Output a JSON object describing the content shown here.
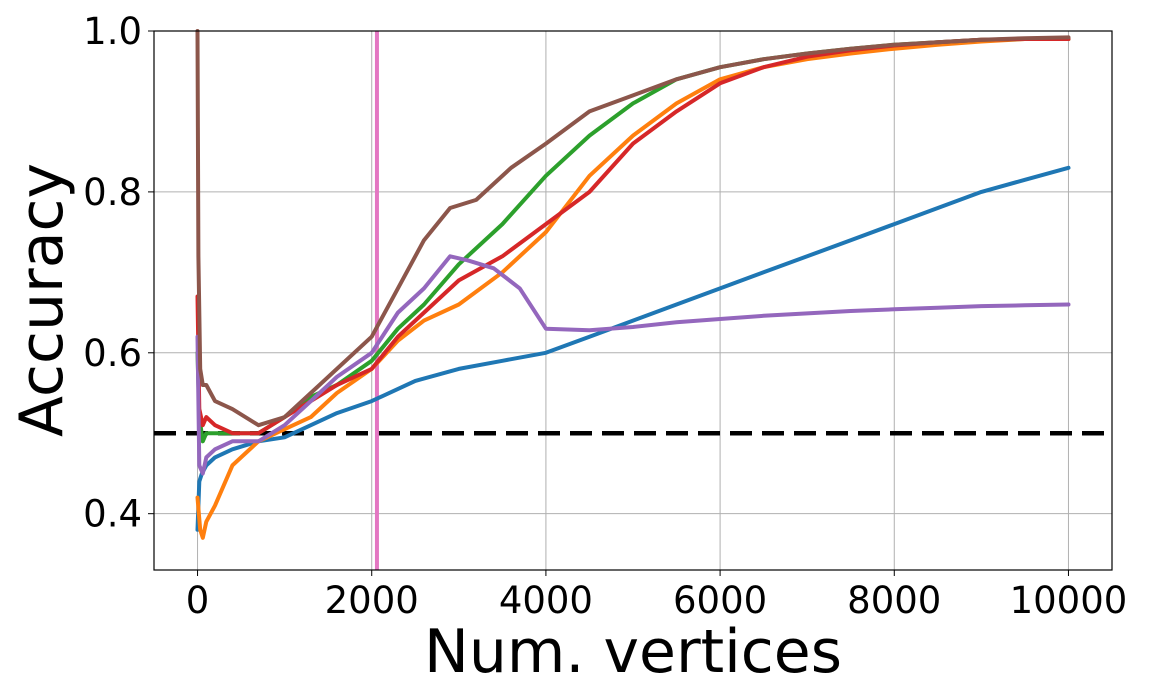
{
  "chart_data": {
    "type": "line",
    "title": "",
    "xlabel": "Num. vertices",
    "ylabel": "Accuracy",
    "xlim": [
      -500,
      10500
    ],
    "ylim": [
      0.33,
      1.0
    ],
    "xticks": [
      0,
      2000,
      4000,
      6000,
      8000,
      10000
    ],
    "xtick_labels": [
      "0",
      "2000",
      "4000",
      "6000",
      "8000",
      "10000"
    ],
    "yticks": [
      0.4,
      0.6,
      0.8,
      1.0
    ],
    "ytick_labels": [
      "0.4",
      "0.6",
      "0.8",
      "1.0"
    ],
    "grid": true,
    "reference_lines": [
      {
        "orientation": "horizontal",
        "value": 0.5,
        "style": "dashed",
        "color": "#000000"
      },
      {
        "orientation": "vertical",
        "value": 2060,
        "style": "solid",
        "color": "#e377c2"
      }
    ],
    "series": [
      {
        "color": "#1f77b4",
        "x": [
          0,
          20,
          50,
          100,
          200,
          400,
          700,
          1000,
          1300,
          1600,
          2000,
          2500,
          3000,
          3500,
          4000,
          4500,
          5000,
          5500,
          6000,
          6500,
          7000,
          7500,
          8000,
          8500,
          9000,
          9500,
          10000
        ],
        "y": [
          0.38,
          0.44,
          0.45,
          0.46,
          0.47,
          0.48,
          0.49,
          0.495,
          0.51,
          0.525,
          0.54,
          0.565,
          0.58,
          0.59,
          0.6,
          0.62,
          0.64,
          0.66,
          0.68,
          0.7,
          0.72,
          0.74,
          0.76,
          0.78,
          0.8,
          0.815,
          0.83
        ]
      },
      {
        "color": "#ff7f0e",
        "x": [
          0,
          30,
          60,
          100,
          200,
          400,
          700,
          1000,
          1300,
          1600,
          2000,
          2300,
          2600,
          3000,
          3500,
          4000,
          4500,
          5000,
          5500,
          6000,
          6500,
          7000,
          7500,
          8000,
          8500,
          9000,
          9500,
          10000
        ],
        "y": [
          0.42,
          0.38,
          0.37,
          0.39,
          0.41,
          0.46,
          0.49,
          0.505,
          0.52,
          0.55,
          0.58,
          0.615,
          0.64,
          0.66,
          0.7,
          0.75,
          0.82,
          0.87,
          0.91,
          0.94,
          0.955,
          0.965,
          0.972,
          0.978,
          0.983,
          0.987,
          0.99,
          0.99
        ]
      },
      {
        "color": "#2ca02c",
        "x": [
          0,
          20,
          60,
          100,
          200,
          400,
          700,
          1000,
          1300,
          1600,
          2000,
          2300,
          2600,
          3000,
          3500,
          4000,
          4500,
          5000,
          5500,
          6000,
          6500,
          7000,
          7500,
          8000,
          8500,
          9000,
          9500,
          10000
        ],
        "y": [
          0.6,
          0.52,
          0.49,
          0.5,
          0.5,
          0.5,
          0.5,
          0.52,
          0.545,
          0.56,
          0.59,
          0.63,
          0.66,
          0.71,
          0.76,
          0.82,
          0.87,
          0.91,
          0.94,
          0.955,
          0.965,
          0.972,
          0.978,
          0.983,
          0.986,
          0.989,
          0.99,
          0.99
        ]
      },
      {
        "color": "#d62728",
        "x": [
          0,
          20,
          60,
          100,
          200,
          400,
          700,
          1000,
          1300,
          1600,
          2000,
          2300,
          2600,
          3000,
          3500,
          4000,
          4500,
          5000,
          5500,
          6000,
          6500,
          7000,
          7500,
          8000,
          8500,
          9000,
          9500,
          10000
        ],
        "y": [
          0.67,
          0.53,
          0.51,
          0.52,
          0.51,
          0.5,
          0.5,
          0.52,
          0.54,
          0.56,
          0.58,
          0.62,
          0.65,
          0.69,
          0.72,
          0.76,
          0.8,
          0.86,
          0.9,
          0.935,
          0.955,
          0.968,
          0.976,
          0.982,
          0.986,
          0.989,
          0.99,
          0.99
        ]
      },
      {
        "color": "#9467bd",
        "x": [
          0,
          20,
          60,
          100,
          200,
          400,
          700,
          1000,
          1300,
          1600,
          2000,
          2300,
          2600,
          2900,
          3100,
          3400,
          3700,
          4000,
          4500,
          5000,
          5500,
          6000,
          6500,
          7000,
          7500,
          8000,
          8500,
          9000,
          9500,
          10000
        ],
        "y": [
          0.62,
          0.46,
          0.45,
          0.47,
          0.48,
          0.49,
          0.49,
          0.51,
          0.54,
          0.57,
          0.6,
          0.65,
          0.68,
          0.72,
          0.715,
          0.705,
          0.68,
          0.63,
          0.628,
          0.632,
          0.638,
          0.642,
          0.646,
          0.649,
          0.652,
          0.654,
          0.656,
          0.658,
          0.659,
          0.66
        ]
      },
      {
        "color": "#8c564b",
        "x": [
          0,
          10,
          30,
          60,
          100,
          200,
          400,
          700,
          1000,
          1300,
          1600,
          2000,
          2300,
          2600,
          2900,
          3200,
          3600,
          4000,
          4500,
          5000,
          5500,
          6000,
          6500,
          7000,
          7500,
          8000,
          8500,
          9000,
          9500,
          10000
        ],
        "y": [
          1.0,
          0.72,
          0.58,
          0.56,
          0.56,
          0.54,
          0.53,
          0.51,
          0.52,
          0.55,
          0.58,
          0.62,
          0.68,
          0.74,
          0.78,
          0.79,
          0.83,
          0.86,
          0.9,
          0.92,
          0.94,
          0.955,
          0.965,
          0.972,
          0.978,
          0.983,
          0.986,
          0.989,
          0.991,
          0.992
        ]
      }
    ]
  }
}
